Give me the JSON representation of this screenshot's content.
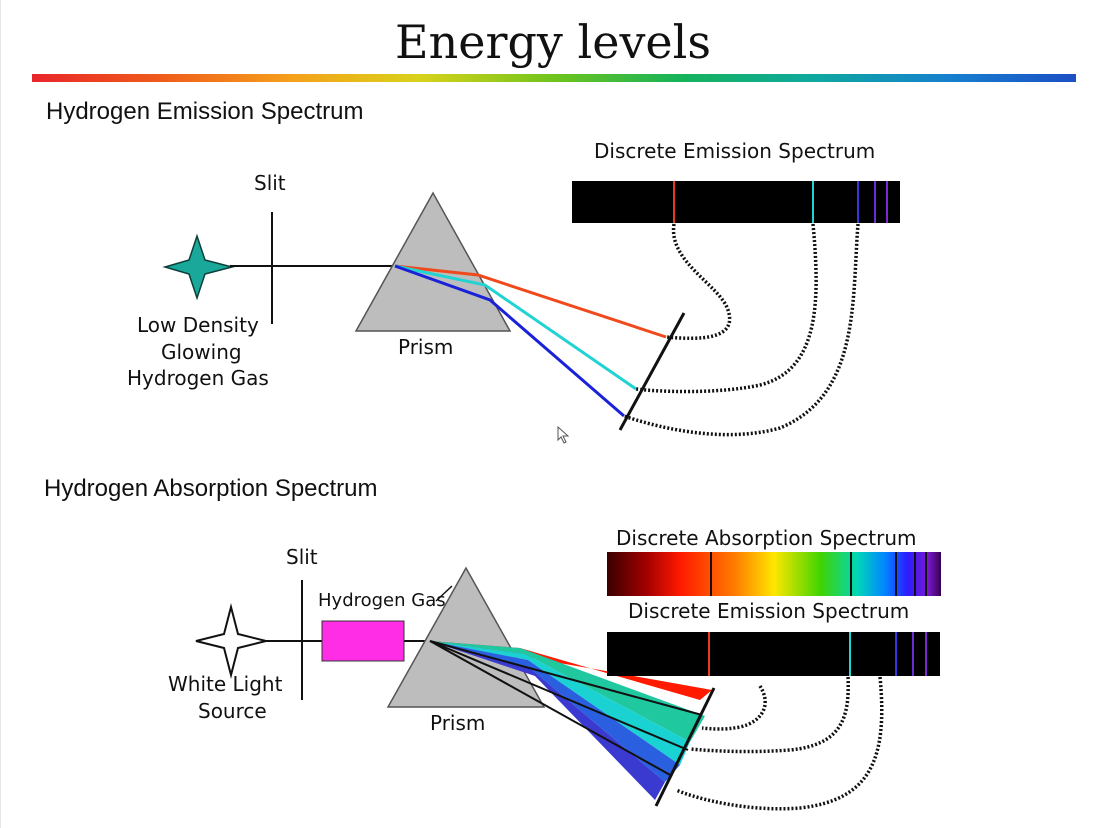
{
  "slide": {
    "title": "Energy levels",
    "sections": [
      {
        "heading": "Hydrogen Emission Spectrum",
        "labels": {
          "slit": "Slit",
          "source_line1": "Low Density",
          "source_line2": "Glowing",
          "source_line3": "Hydrogen Gas",
          "prism": "Prism",
          "spectrum": "Discrete Emission Spectrum"
        }
      },
      {
        "heading": "Hydrogen Absorption Spectrum",
        "labels": {
          "slit": "Slit",
          "gas": "Hydrogen Gas",
          "source_line1": "White Light",
          "source_line2": "Source",
          "prism": "Prism",
          "absorption": "Discrete Absorption Spectrum",
          "emission": "Discrete Emission Spectrum"
        }
      }
    ]
  },
  "colors": {
    "red_line": "#e8391f",
    "cyan_line": "#22d3d3",
    "blue_line": "#1a22d8",
    "violet_line": "#6a2bd8",
    "star_emission": "#1aa89a",
    "gas_box": "#ff2ee6",
    "prism": "#bdbdbd"
  },
  "icons": {
    "emission_source": "four-point-star-icon",
    "absorption_source": "four-point-star-outline-icon",
    "mouse_pointer": "cursor-arrow-icon"
  }
}
